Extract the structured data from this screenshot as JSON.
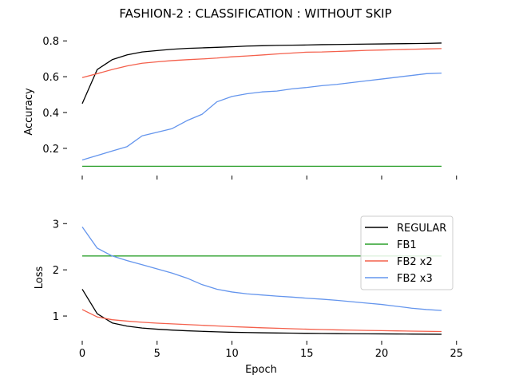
{
  "title": "FASHION-2 : CLASSIFICATION : WITHOUT SKIP",
  "chart_data": [
    {
      "type": "line",
      "xlabel": "",
      "ylabel": "Accuracy",
      "xlim": [
        0,
        25
      ],
      "ylim": [
        0.075,
        0.85
      ],
      "xticks": [
        0,
        5,
        10,
        15,
        20,
        25
      ],
      "xtick_labels": [
        "",
        "",
        "",
        "",
        "",
        ""
      ],
      "yticks": [
        0.2,
        0.4,
        0.6,
        0.8
      ],
      "ytick_labels": [
        "0.2",
        "0.4",
        "0.6",
        "0.8"
      ],
      "grid": false,
      "x": [
        0,
        1,
        2,
        3,
        4,
        5,
        6,
        7,
        8,
        9,
        10,
        11,
        12,
        13,
        14,
        15,
        16,
        17,
        18,
        19,
        20,
        21,
        22,
        23,
        24
      ],
      "series": [
        {
          "name": "REGULAR",
          "color": "#000000",
          "values": [
            0.45,
            0.64,
            0.695,
            0.722,
            0.738,
            0.746,
            0.753,
            0.758,
            0.761,
            0.764,
            0.767,
            0.771,
            0.773,
            0.775,
            0.776,
            0.777,
            0.779,
            0.78,
            0.781,
            0.782,
            0.783,
            0.784,
            0.785,
            0.786,
            0.788
          ]
        },
        {
          "name": "FB1",
          "color": "#2ca02c",
          "values": [
            0.1,
            0.1,
            0.1,
            0.1,
            0.1,
            0.1,
            0.1,
            0.1,
            0.1,
            0.1,
            0.1,
            0.1,
            0.1,
            0.1,
            0.1,
            0.1,
            0.1,
            0.1,
            0.1,
            0.1,
            0.1,
            0.1,
            0.1,
            0.1,
            0.1
          ]
        },
        {
          "name": "FB2 x2",
          "color": "#f4604c",
          "values": [
            0.595,
            0.617,
            0.64,
            0.66,
            0.675,
            0.683,
            0.69,
            0.695,
            0.699,
            0.704,
            0.711,
            0.716,
            0.721,
            0.727,
            0.732,
            0.737,
            0.738,
            0.741,
            0.744,
            0.747,
            0.749,
            0.751,
            0.753,
            0.755,
            0.757
          ]
        },
        {
          "name": "FB2 x3",
          "color": "#6495ed",
          "values": [
            0.135,
            0.16,
            0.185,
            0.21,
            0.27,
            0.29,
            0.31,
            0.355,
            0.39,
            0.46,
            0.49,
            0.505,
            0.515,
            0.52,
            0.532,
            0.54,
            0.55,
            0.557,
            0.567,
            0.577,
            0.587,
            0.597,
            0.607,
            0.617,
            0.62
          ]
        }
      ]
    },
    {
      "type": "line",
      "xlabel": "Epoch",
      "ylabel": "Loss",
      "xlim": [
        0,
        25
      ],
      "ylim": [
        0.5,
        3.35
      ],
      "xticks": [
        0,
        5,
        10,
        15,
        20,
        25
      ],
      "xtick_labels": [
        "0",
        "5",
        "10",
        "15",
        "20",
        "25"
      ],
      "yticks": [
        1,
        2,
        3
      ],
      "ytick_labels": [
        "1",
        "2",
        "3"
      ],
      "grid": false,
      "legend": "right",
      "x": [
        0,
        1,
        2,
        3,
        4,
        5,
        6,
        7,
        8,
        9,
        10,
        11,
        12,
        13,
        14,
        15,
        16,
        17,
        18,
        19,
        20,
        21,
        22,
        23,
        24
      ],
      "series": [
        {
          "name": "REGULAR",
          "color": "#000000",
          "values": [
            1.58,
            1.05,
            0.85,
            0.78,
            0.74,
            0.715,
            0.695,
            0.68,
            0.668,
            0.657,
            0.648,
            0.642,
            0.637,
            0.633,
            0.629,
            0.626,
            0.623,
            0.62,
            0.617,
            0.615,
            0.613,
            0.611,
            0.609,
            0.607,
            0.605
          ]
        },
        {
          "name": "FB1",
          "color": "#2ca02c",
          "values": [
            2.3,
            2.3,
            2.3,
            2.3,
            2.3,
            2.3,
            2.3,
            2.3,
            2.3,
            2.3,
            2.3,
            2.3,
            2.3,
            2.3,
            2.3,
            2.3,
            2.3,
            2.3,
            2.3,
            2.3,
            2.3,
            2.3,
            2.3,
            2.3,
            2.3
          ]
        },
        {
          "name": "FB2 x2",
          "color": "#f4604c",
          "values": [
            1.14,
            0.98,
            0.92,
            0.89,
            0.865,
            0.845,
            0.83,
            0.815,
            0.8,
            0.785,
            0.77,
            0.758,
            0.745,
            0.735,
            0.725,
            0.715,
            0.707,
            0.7,
            0.694,
            0.688,
            0.683,
            0.678,
            0.673,
            0.668,
            0.664
          ]
        },
        {
          "name": "FB2 x3",
          "color": "#6495ed",
          "values": [
            2.93,
            2.47,
            2.3,
            2.2,
            2.11,
            2.02,
            1.93,
            1.82,
            1.68,
            1.58,
            1.52,
            1.48,
            1.455,
            1.43,
            1.41,
            1.385,
            1.365,
            1.34,
            1.31,
            1.28,
            1.25,
            1.21,
            1.17,
            1.14,
            1.12
          ]
        }
      ]
    }
  ]
}
